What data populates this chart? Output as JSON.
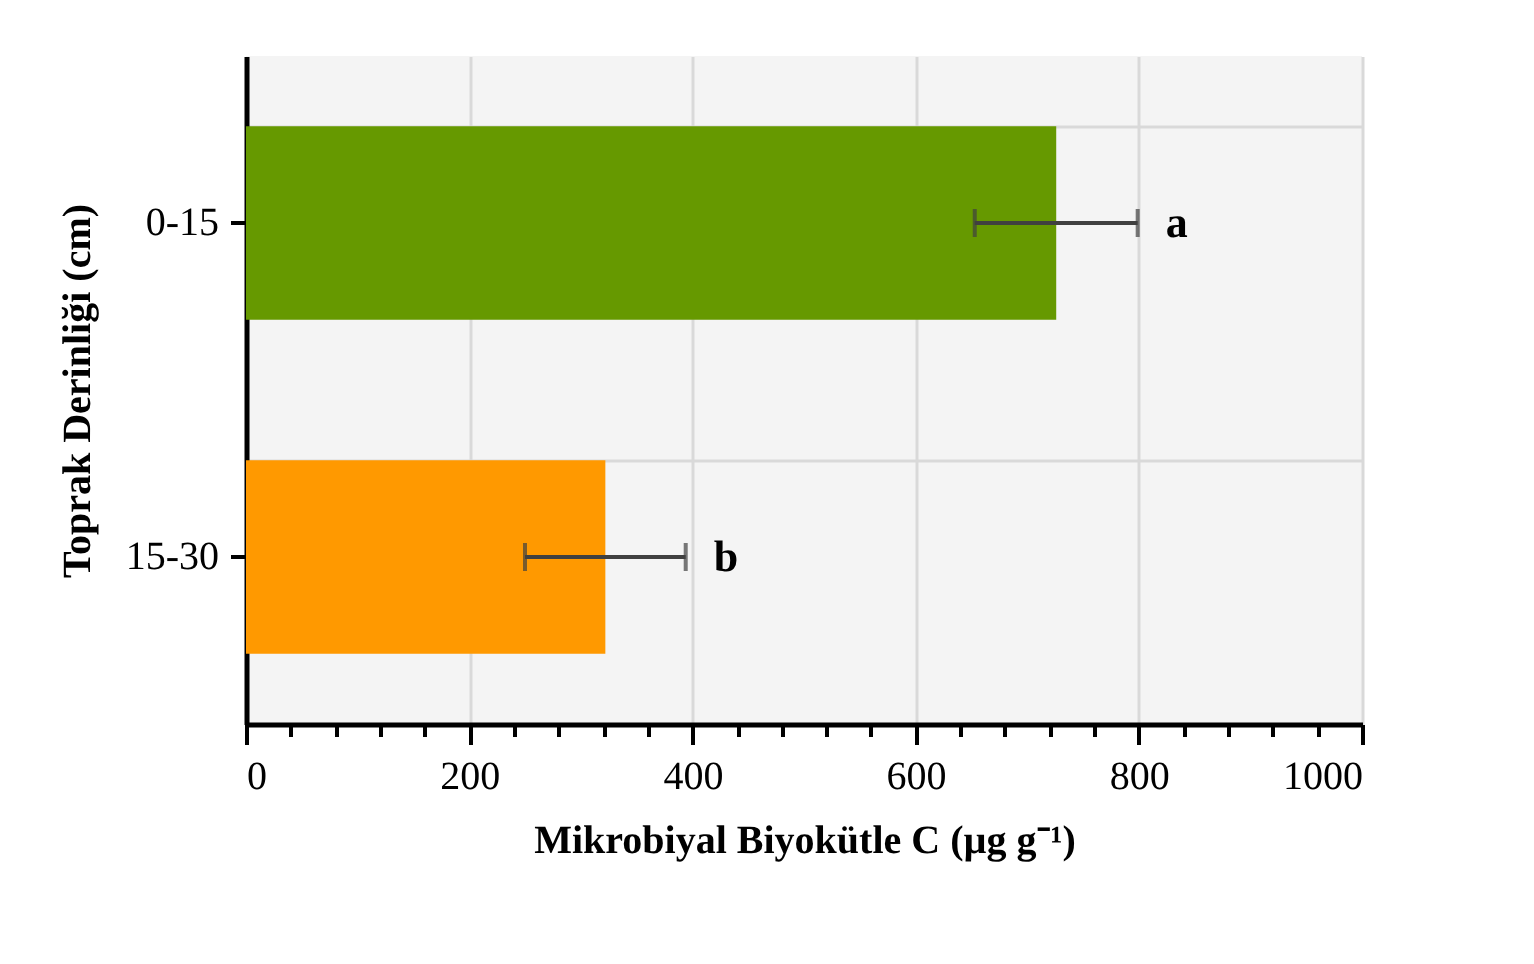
{
  "chart_data": {
    "type": "bar",
    "orientation": "horizontal",
    "categories": [
      "0-15",
      "15-30"
    ],
    "values": [
      726,
      322
    ],
    "colors": [
      "#669900",
      "#ff9900"
    ],
    "errors": [
      73,
      72
    ],
    "xlabel": "Mikrobiyal Biyokütle C (µg g⁻¹)",
    "ylabel": "Toprak Derinliği (cm)",
    "xlim": [
      0,
      1000
    ],
    "xticks": [
      0,
      {
        "value": 40,
        "label": null
      },
      {
        "value": 80,
        "label": null
      },
      {
        "value": 120,
        "label": null
      },
      {
        "value": 160,
        "label": null
      },
      200,
      {
        "value": 240,
        "label": null
      },
      {
        "value": 280,
        "label": null
      },
      {
        "value": 320,
        "label": null
      },
      {
        "value": 360,
        "label": null
      },
      400,
      {
        "value": 440,
        "label": null
      },
      {
        "value": 480,
        "label": null
      },
      {
        "value": 520,
        "label": null
      },
      {
        "value": 560,
        "label": null
      },
      600,
      {
        "value": 640,
        "label": null
      },
      {
        "value": 680,
        "label": null
      },
      {
        "value": 720,
        "label": null
      },
      {
        "value": 760,
        "label": null
      },
      800,
      {
        "value": 840,
        "label": null
      },
      {
        "value": 880,
        "label": null
      },
      {
        "value": 920,
        "label": null
      },
      {
        "value": 960,
        "label": null
      },
      1000
    ],
    "grid": true,
    "annotations": [
      {
        "text": "a",
        "x": 799,
        "y": "0-15"
      },
      {
        "text": "b",
        "x": 394,
        "y": "15-30"
      }
    ]
  }
}
